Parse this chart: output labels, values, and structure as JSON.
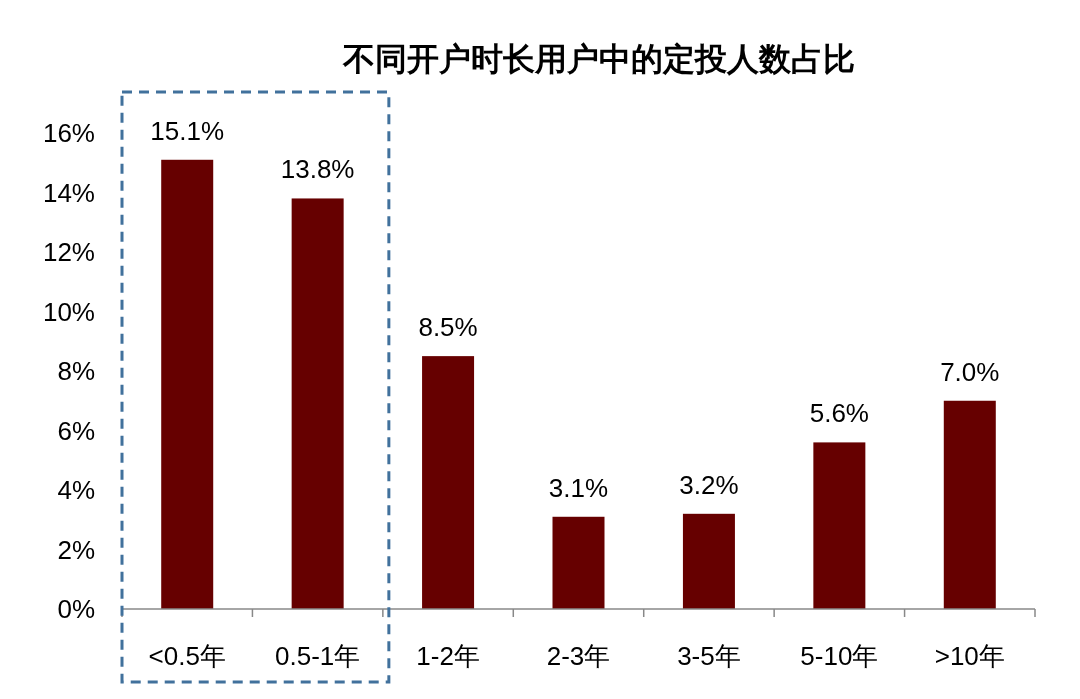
{
  "chart_data": {
    "type": "bar",
    "title": "不同开户时长用户中的定投人数占比",
    "categories": [
      "<0.5年",
      "0.5-1年",
      "1-2年",
      "2-3年",
      "3-5年",
      "5-10年",
      ">10年"
    ],
    "values": [
      15.1,
      13.8,
      8.5,
      3.1,
      3.2,
      5.6,
      7.0
    ],
    "value_labels": [
      "15.1%",
      "13.8%",
      "8.5%",
      "3.1%",
      "3.2%",
      "5.6%",
      "7.0%"
    ],
    "color": "#660000",
    "ylim": [
      0,
      16
    ],
    "yticks": [
      {
        "value": 0,
        "label": "0%"
      },
      {
        "value": 2,
        "label": "2%"
      },
      {
        "value": 4,
        "label": "4%"
      },
      {
        "value": 6,
        "label": "6%"
      },
      {
        "value": 8,
        "label": "8%"
      },
      {
        "value": 10,
        "label": "10%"
      },
      {
        "value": 12,
        "label": "12%"
      },
      {
        "value": 14,
        "label": "14%"
      },
      {
        "value": 16,
        "label": "16%"
      }
    ],
    "grid": false
  }
}
